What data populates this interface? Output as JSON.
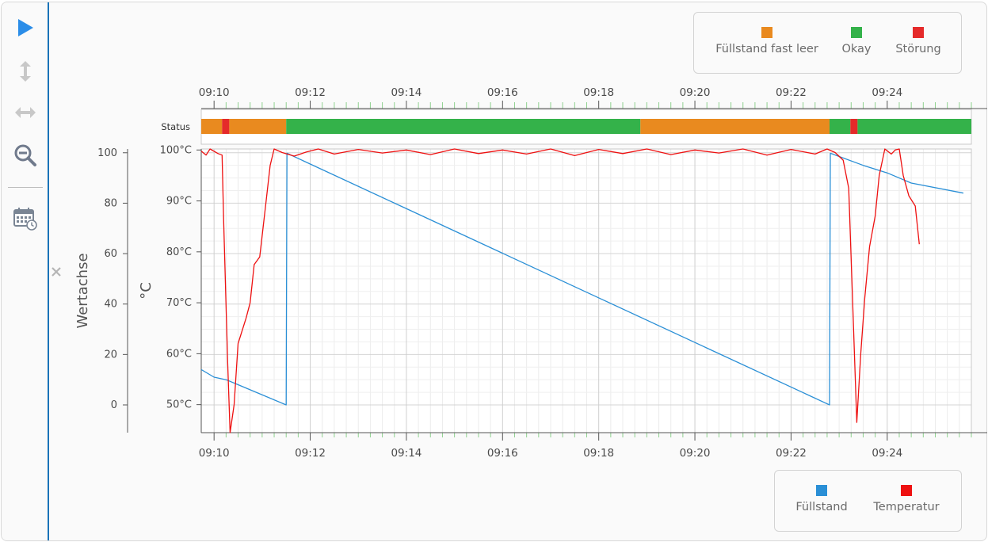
{
  "toolbar": {
    "items": [
      {
        "name": "play-icon"
      },
      {
        "name": "vertical-resize-icon"
      },
      {
        "name": "horizontal-resize-icon"
      },
      {
        "name": "zoom-out-icon"
      },
      {
        "name": "calendar-clock-icon"
      }
    ],
    "accent_color": "#2b8de8"
  },
  "status_legend": [
    {
      "label": "Füllstand fast leer",
      "color": "#e98a1f"
    },
    {
      "label": "Okay",
      "color": "#34b24a"
    },
    {
      "label": "Störung",
      "color": "#e52a2a"
    }
  ],
  "series_legend": [
    {
      "label": "Füllstand",
      "color": "#2a8fd6"
    },
    {
      "label": "Temperatur",
      "color": "#ee1111"
    }
  ],
  "chart_data": {
    "type": "line",
    "x_axis": {
      "ticks": [
        "09:10",
        "09:12",
        "09:14",
        "09:16",
        "09:18",
        "09:20",
        "09:22",
        "09:24"
      ],
      "range": [
        "09:09:44",
        "09:25:45"
      ]
    },
    "status_lane": {
      "label": "Status",
      "segments": [
        {
          "state": "Füllstand fast leer",
          "start": "09:09:44",
          "end": "09:10:10"
        },
        {
          "state": "Störung",
          "start": "09:10:10",
          "end": "09:10:19"
        },
        {
          "state": "Füllstand fast leer",
          "start": "09:10:19",
          "end": "09:11:30"
        },
        {
          "state": "Okay",
          "start": "09:11:30",
          "end": "09:18:52"
        },
        {
          "state": "Füllstand fast leer",
          "start": "09:18:52",
          "end": "09:22:48"
        },
        {
          "state": "Okay",
          "start": "09:22:48",
          "end": "09:23:14"
        },
        {
          "state": "Störung",
          "start": "09:23:14",
          "end": "09:23:23"
        },
        {
          "state": "Okay",
          "start": "09:23:23",
          "end": "09:25:45"
        }
      ]
    },
    "y_left": {
      "label": "Wertachse",
      "ticks": [
        0,
        20,
        40,
        60,
        80,
        100
      ],
      "range": [
        -11,
        101.5
      ]
    },
    "y_right": {
      "label": "°C",
      "ticks": [
        "50°C",
        "60°C",
        "70°C",
        "80°C",
        "90°C",
        "100°C"
      ],
      "range": [
        44.5,
        100.2
      ]
    },
    "grid": true,
    "series": [
      {
        "name": "Füllstand",
        "axis": "left",
        "points": [
          [
            "09:09:44",
            14
          ],
          [
            "09:10:00",
            11
          ],
          [
            "09:10:15",
            10
          ],
          [
            "09:10:30",
            8
          ],
          [
            "09:11:30",
            0
          ],
          [
            "09:11:31",
            99.8
          ],
          [
            "09:22:48",
            0
          ],
          [
            "09:22:49",
            99.8
          ],
          [
            "09:23:30",
            95
          ],
          [
            "09:24:00",
            92
          ],
          [
            "09:24:30",
            88
          ],
          [
            "09:25:35",
            84
          ]
        ]
      },
      {
        "name": "Temperatur",
        "axis": "right",
        "points": [
          [
            "09:09:44",
            99.8
          ],
          [
            "09:09:50",
            99
          ],
          [
            "09:09:55",
            100.2
          ],
          [
            "09:10:05",
            99.3
          ],
          [
            "09:10:10",
            99
          ],
          [
            "09:10:12",
            86
          ],
          [
            "09:10:17",
            58
          ],
          [
            "09:10:20",
            44.5
          ],
          [
            "09:10:25",
            50
          ],
          [
            "09:10:30",
            62
          ],
          [
            "09:10:40",
            67
          ],
          [
            "09:10:45",
            70
          ],
          [
            "09:10:50",
            77.5
          ],
          [
            "09:10:57",
            79
          ],
          [
            "09:11:05",
            90
          ],
          [
            "09:11:10",
            97
          ],
          [
            "09:11:15",
            100.2
          ],
          [
            "09:11:25",
            99.5
          ],
          [
            "09:11:40",
            98.8
          ],
          [
            "09:11:55",
            99.6
          ],
          [
            "09:12:10",
            100.2
          ],
          [
            "09:12:30",
            99.2
          ],
          [
            "09:13:00",
            100.1
          ],
          [
            "09:13:30",
            99.4
          ],
          [
            "09:14:00",
            100
          ],
          [
            "09:14:30",
            99.1
          ],
          [
            "09:15:00",
            100.2
          ],
          [
            "09:15:30",
            99.3
          ],
          [
            "09:16:00",
            100
          ],
          [
            "09:16:30",
            99.2
          ],
          [
            "09:17:00",
            100.2
          ],
          [
            "09:17:30",
            98.9
          ],
          [
            "09:18:00",
            100.1
          ],
          [
            "09:18:30",
            99.3
          ],
          [
            "09:19:00",
            100.2
          ],
          [
            "09:19:30",
            99.1
          ],
          [
            "09:20:00",
            100
          ],
          [
            "09:20:30",
            99.4
          ],
          [
            "09:21:00",
            100.2
          ],
          [
            "09:21:30",
            99
          ],
          [
            "09:22:00",
            100.1
          ],
          [
            "09:22:30",
            99.2
          ],
          [
            "09:22:45",
            100.2
          ],
          [
            "09:22:55",
            99.5
          ],
          [
            "09:23:05",
            98
          ],
          [
            "09:23:12",
            92.5
          ],
          [
            "09:23:18",
            65
          ],
          [
            "09:23:22",
            46.5
          ],
          [
            "09:23:27",
            60
          ],
          [
            "09:23:32",
            71
          ],
          [
            "09:23:38",
            81
          ],
          [
            "09:23:45",
            87
          ],
          [
            "09:23:50",
            95
          ],
          [
            "09:23:57",
            100.2
          ],
          [
            "09:24:05",
            99.2
          ],
          [
            "09:24:10",
            100
          ],
          [
            "09:24:15",
            100.2
          ],
          [
            "09:24:20",
            95
          ],
          [
            "09:24:27",
            91
          ],
          [
            "09:24:35",
            89
          ],
          [
            "09:24:40",
            81.5
          ]
        ]
      }
    ]
  }
}
